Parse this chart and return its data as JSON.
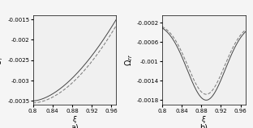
{
  "xlim": [
    0.8,
    0.97
  ],
  "left_ylim": [
    -0.0036,
    -0.0014
  ],
  "right_ylim": [
    -0.0019,
    -5e-05
  ],
  "left_yticks": [
    -0.0035,
    -0.003,
    -0.0025,
    -0.002,
    -0.0015
  ],
  "right_yticks": [
    -0.0018,
    -0.0014,
    -0.001,
    -0.0006,
    -0.0002
  ],
  "xticks": [
    0.8,
    0.84,
    0.88,
    0.92,
    0.96
  ],
  "left_ylabel": "$U_r$",
  "right_ylabel": "$\\Omega_{rr}$",
  "xlabel": "$\\xi$",
  "label_a": "a)",
  "label_b": "b)",
  "bg_color": "#f0f0f0",
  "line_color1": "#555555",
  "line_color2": "#888888"
}
